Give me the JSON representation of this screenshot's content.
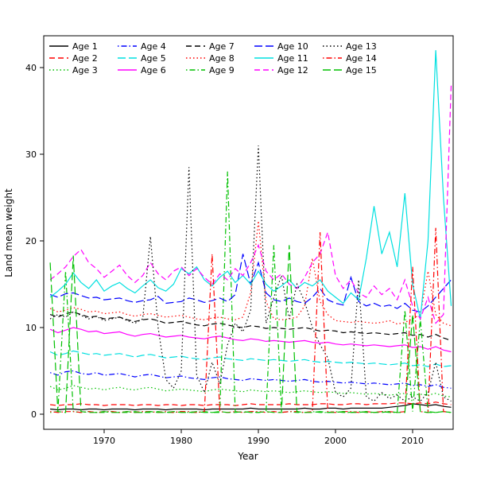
{
  "chart_data": {
    "type": "line",
    "title": "",
    "xlabel": "Year",
    "ylabel": "Land mean weight",
    "xlim": [
      1963,
      2015
    ],
    "ylim": [
      0,
      42
    ],
    "x_ticks": [
      1970,
      1980,
      1990,
      2000,
      2010
    ],
    "y_ticks": [
      0,
      10,
      20,
      30,
      40
    ],
    "grid": false,
    "legend_position": "top-left",
    "legend_columns": 5,
    "x": [
      1963,
      1964,
      1965,
      1966,
      1967,
      1968,
      1969,
      1970,
      1971,
      1972,
      1973,
      1974,
      1975,
      1976,
      1977,
      1978,
      1979,
      1980,
      1981,
      1982,
      1983,
      1984,
      1985,
      1986,
      1987,
      1988,
      1989,
      1990,
      1991,
      1992,
      1993,
      1994,
      1995,
      1996,
      1997,
      1998,
      1999,
      2000,
      2001,
      2002,
      2003,
      2004,
      2005,
      2006,
      2007,
      2008,
      2009,
      2010,
      2011,
      2012,
      2013,
      2014,
      2015
    ],
    "series": [
      {
        "name": "Age 1",
        "color": "#000000",
        "linetype": "solid",
        "values": [
          0.6,
          0.5,
          0.6,
          0.6,
          0.5,
          0.6,
          0.6,
          0.5,
          0.6,
          0.6,
          0.6,
          0.5,
          0.6,
          0.6,
          0.6,
          0.5,
          0.6,
          0.6,
          0.6,
          0.6,
          0.5,
          0.6,
          0.6,
          0.6,
          0.6,
          0.6,
          0.7,
          0.6,
          0.6,
          0.6,
          0.6,
          0.6,
          0.6,
          0.7,
          0.6,
          0.6,
          0.7,
          0.7,
          0.6,
          0.7,
          0.7,
          0.7,
          0.7,
          0.7,
          0.8,
          0.9,
          1.0,
          1.2,
          1.1,
          1.0,
          1.1,
          0.9,
          0.8
        ]
      },
      {
        "name": "Age 2",
        "color": "#FF0000",
        "linetype": "dashed",
        "values": [
          1.1,
          1.0,
          1.1,
          1.1,
          1.2,
          1.1,
          1.1,
          1.0,
          1.1,
          1.1,
          1.1,
          1.0,
          1.1,
          1.1,
          1.0,
          1.1,
          1.1,
          1.0,
          1.1,
          1.1,
          1.0,
          1.1,
          1.1,
          1.1,
          1.0,
          1.1,
          1.2,
          1.1,
          1.1,
          1.1,
          1.1,
          1.2,
          1.1,
          1.1,
          1.1,
          1.2,
          1.2,
          1.1,
          1.1,
          1.2,
          1.2,
          1.1,
          1.2,
          1.2,
          1.2,
          1.3,
          1.3,
          1.2,
          1.3,
          1.2,
          1.4,
          1.2,
          1.1
        ]
      },
      {
        "name": "Age 3",
        "color": "#00C000",
        "linetype": "dotted",
        "values": [
          3.2,
          2.8,
          3.0,
          3.3,
          3.1,
          2.9,
          3.0,
          2.8,
          3.0,
          3.1,
          2.9,
          2.8,
          3.0,
          3.1,
          2.9,
          2.7,
          2.8,
          2.9,
          2.8,
          2.7,
          2.6,
          2.8,
          2.9,
          2.8,
          2.7,
          2.6,
          2.8,
          2.7,
          2.6,
          2.7,
          2.6,
          2.5,
          2.6,
          2.7,
          2.6,
          2.5,
          2.6,
          2.5,
          2.4,
          2.5,
          2.4,
          2.3,
          2.4,
          2.3,
          2.2,
          2.3,
          2.4,
          2.2,
          2.3,
          2.2,
          2.4,
          2.1,
          2.0
        ]
      },
      {
        "name": "Age 4",
        "color": "#0000FF",
        "linetype": "dotdash",
        "values": [
          4.8,
          4.5,
          4.9,
          5.0,
          4.7,
          4.6,
          4.8,
          4.5,
          4.6,
          4.7,
          4.5,
          4.3,
          4.5,
          4.6,
          4.4,
          4.2,
          4.3,
          4.4,
          4.2,
          4.1,
          4.0,
          4.2,
          4.3,
          4.1,
          4.0,
          3.9,
          4.1,
          4.0,
          3.9,
          4.0,
          3.9,
          3.8,
          3.9,
          4.0,
          3.8,
          3.7,
          3.8,
          3.7,
          3.6,
          3.7,
          3.6,
          3.5,
          3.6,
          3.5,
          3.4,
          3.5,
          3.6,
          3.3,
          3.4,
          3.2,
          3.4,
          3.1,
          3.0
        ]
      },
      {
        "name": "Age 5",
        "color": "#00E0E0",
        "linetype": "longdash",
        "values": [
          7.2,
          6.8,
          7.0,
          7.3,
          7.1,
          6.9,
          7.0,
          6.8,
          6.9,
          7.0,
          6.8,
          6.6,
          6.8,
          6.9,
          6.7,
          6.5,
          6.6,
          6.7,
          6.5,
          6.4,
          6.3,
          6.5,
          6.6,
          6.4,
          6.3,
          6.2,
          6.4,
          6.3,
          6.2,
          6.3,
          6.2,
          6.1,
          6.2,
          6.3,
          6.1,
          6.0,
          6.1,
          6.0,
          5.9,
          6.0,
          5.9,
          5.8,
          5.9,
          5.8,
          5.7,
          5.8,
          5.9,
          5.6,
          5.7,
          5.5,
          5.8,
          5.5,
          5.6
        ]
      },
      {
        "name": "Age 6",
        "color": "#FF00FF",
        "linetype": "solid",
        "values": [
          9.8,
          9.4,
          9.7,
          10.0,
          9.8,
          9.5,
          9.6,
          9.3,
          9.4,
          9.5,
          9.2,
          9.0,
          9.2,
          9.3,
          9.1,
          8.9,
          9.0,
          9.1,
          8.9,
          8.8,
          8.7,
          8.9,
          9.0,
          8.8,
          8.6,
          8.5,
          8.7,
          8.6,
          8.4,
          8.5,
          8.4,
          8.3,
          8.4,
          8.5,
          8.3,
          8.2,
          8.3,
          8.1,
          8.0,
          8.1,
          8.0,
          7.9,
          8.0,
          7.9,
          7.8,
          7.9,
          8.0,
          7.7,
          7.8,
          7.5,
          7.8,
          7.4,
          7.2
        ]
      },
      {
        "name": "Age 7",
        "color": "#000000",
        "linetype": "dashed",
        "values": [
          11.5,
          11.2,
          11.6,
          11.8,
          11.5,
          11.2,
          11.3,
          11.0,
          11.1,
          11.2,
          10.9,
          10.7,
          10.9,
          11.0,
          10.8,
          10.5,
          10.6,
          10.7,
          10.5,
          10.3,
          10.2,
          10.4,
          10.5,
          10.3,
          10.1,
          10.0,
          10.2,
          10.1,
          9.9,
          10.0,
          9.9,
          9.8,
          9.9,
          10.0,
          9.8,
          9.6,
          9.7,
          9.6,
          9.4,
          9.5,
          9.4,
          9.3,
          9.4,
          9.3,
          9.2,
          9.3,
          9.4,
          9.1,
          9.2,
          8.9,
          9.2,
          8.8,
          8.5
        ]
      },
      {
        "name": "Age 8",
        "color": "#FF0000",
        "linetype": "dotted",
        "values": [
          12.2,
          11.8,
          12.0,
          12.3,
          12.1,
          11.8,
          11.9,
          11.6,
          11.7,
          11.8,
          11.5,
          11.3,
          11.5,
          11.6,
          11.4,
          11.2,
          11.3,
          11.4,
          11.2,
          11.0,
          10.9,
          11.1,
          11.2,
          11.0,
          10.9,
          11.2,
          14.0,
          22.3,
          13.0,
          11.0,
          10.9,
          11.0,
          11.2,
          12.5,
          18.0,
          13.0,
          11.5,
          10.8,
          10.7,
          10.6,
          10.7,
          10.6,
          10.5,
          10.6,
          10.8,
          10.4,
          10.6,
          11.0,
          11.5,
          16.5,
          11.5,
          10.5,
          10.2
        ]
      },
      {
        "name": "Age 9",
        "color": "#00C000",
        "linetype": "dotdash",
        "values": [
          0.2,
          0.3,
          16.5,
          0.3,
          0.2,
          0.3,
          0.2,
          0.2,
          0.3,
          0.2,
          0.2,
          0.3,
          0.2,
          0.2,
          0.3,
          0.2,
          0.2,
          0.3,
          0.2,
          0.2,
          0.3,
          0.2,
          0.2,
          28.0,
          0.3,
          0.2,
          0.3,
          0.2,
          0.3,
          19.5,
          0.2,
          0.3,
          0.2,
          0.2,
          0.3,
          0.2,
          0.2,
          0.3,
          0.2,
          0.2,
          0.3,
          0.2,
          0.2,
          0.3,
          0.2,
          0.2,
          12.0,
          0.3,
          11.0,
          0.3,
          0.2,
          0.3,
          0.2
        ]
      },
      {
        "name": "Age 10",
        "color": "#0000FF",
        "linetype": "longdash",
        "values": [
          13.8,
          13.5,
          13.9,
          14.0,
          13.7,
          13.4,
          13.5,
          13.2,
          13.3,
          13.4,
          13.1,
          12.9,
          13.1,
          13.2,
          13.6,
          12.8,
          12.9,
          13.0,
          13.4,
          13.2,
          12.9,
          13.1,
          13.4,
          13.0,
          13.8,
          18.5,
          15.0,
          17.5,
          14.0,
          13.2,
          13.0,
          13.4,
          13.0,
          12.8,
          13.5,
          14.5,
          13.2,
          12.8,
          12.6,
          15.8,
          13.0,
          12.5,
          12.8,
          12.4,
          12.6,
          12.2,
          12.8,
          12.0,
          11.8,
          12.5,
          13.5,
          14.5,
          15.5
        ]
      },
      {
        "name": "Age 11",
        "color": "#00E0E0",
        "linetype": "solid",
        "values": [
          13.5,
          14.2,
          15.0,
          16.3,
          15.2,
          14.5,
          15.5,
          14.2,
          14.8,
          15.2,
          14.5,
          14.0,
          14.8,
          15.5,
          14.6,
          14.2,
          15.0,
          16.8,
          16.2,
          17.0,
          15.5,
          14.8,
          15.8,
          16.5,
          15.2,
          16.0,
          15.0,
          16.5,
          15.0,
          14.2,
          14.8,
          15.5,
          14.5,
          15.2,
          14.8,
          15.5,
          14.2,
          13.5,
          12.8,
          14.0,
          13.2,
          18.0,
          24.0,
          18.5,
          21.0,
          17.0,
          25.5,
          15.0,
          11.0,
          20.0,
          42.0,
          25.0,
          12.5
        ]
      },
      {
        "name": "Age 12",
        "color": "#FF00FF",
        "linetype": "dashed",
        "values": [
          15.5,
          16.2,
          17.0,
          18.2,
          19.0,
          17.5,
          16.8,
          15.8,
          16.5,
          17.2,
          16.0,
          15.2,
          16.0,
          17.5,
          16.2,
          15.5,
          16.5,
          17.0,
          16.0,
          16.8,
          15.8,
          15.0,
          16.2,
          15.5,
          16.8,
          16.0,
          17.5,
          19.5,
          16.5,
          15.5,
          16.2,
          15.0,
          14.5,
          15.8,
          17.5,
          18.5,
          21.0,
          16.0,
          14.5,
          15.5,
          14.0,
          13.5,
          14.8,
          13.8,
          14.5,
          13.2,
          15.5,
          12.5,
          11.0,
          13.5,
          10.5,
          11.5,
          38.0
        ]
      },
      {
        "name": "Age 13",
        "color": "#000000",
        "linetype": "dotted",
        "values": [
          11.0,
          11.5,
          11.2,
          11.8,
          11.4,
          11.0,
          11.3,
          10.8,
          11.0,
          11.2,
          10.8,
          10.5,
          11.0,
          20.5,
          10.0,
          4.0,
          3.0,
          5.0,
          28.5,
          4.5,
          2.5,
          6.0,
          3.5,
          8.0,
          10.5,
          9.5,
          12.0,
          31.0,
          10.5,
          13.5,
          16.0,
          11.0,
          15.0,
          13.0,
          10.0,
          8.0,
          6.5,
          2.5,
          2.0,
          3.0,
          15.5,
          2.0,
          1.5,
          2.5,
          1.8,
          2.2,
          1.5,
          2.0,
          1.5,
          2.5,
          6.0,
          2.0,
          1.5
        ]
      },
      {
        "name": "Age 14",
        "color": "#FF0000",
        "linetype": "dotdash",
        "values": [
          0.3,
          0.2,
          0.3,
          0.3,
          0.2,
          0.3,
          0.2,
          0.3,
          0.3,
          0.2,
          0.3,
          0.2,
          0.3,
          0.3,
          0.2,
          0.3,
          0.2,
          0.3,
          0.3,
          0.2,
          0.3,
          18.5,
          0.3,
          0.2,
          0.3,
          0.2,
          0.3,
          0.3,
          0.2,
          0.3,
          0.2,
          0.3,
          0.3,
          0.2,
          0.3,
          21.0,
          0.3,
          0.2,
          0.3,
          0.3,
          0.2,
          0.3,
          0.2,
          0.3,
          0.3,
          0.2,
          0.3,
          17.0,
          0.3,
          0.2,
          21.5,
          0.3,
          0.2
        ]
      },
      {
        "name": "Age 15",
        "color": "#00C000",
        "linetype": "longdash",
        "values": [
          17.5,
          0.3,
          0.2,
          18.3,
          0.3,
          0.2,
          0.2,
          0.3,
          0.2,
          0.2,
          0.3,
          0.2,
          0.2,
          0.3,
          0.2,
          0.2,
          0.3,
          0.2,
          0.2,
          0.3,
          0.2,
          0.2,
          0.3,
          0.2,
          0.2,
          0.3,
          0.2,
          0.2,
          0.3,
          0.2,
          0.2,
          19.5,
          0.3,
          0.2,
          0.2,
          0.3,
          0.2,
          0.2,
          0.3,
          0.2,
          0.2,
          0.3,
          0.2,
          0.2,
          0.3,
          0.2,
          0.2,
          11.5,
          0.3,
          0.2,
          0.2,
          0.3,
          0.2
        ]
      }
    ]
  }
}
